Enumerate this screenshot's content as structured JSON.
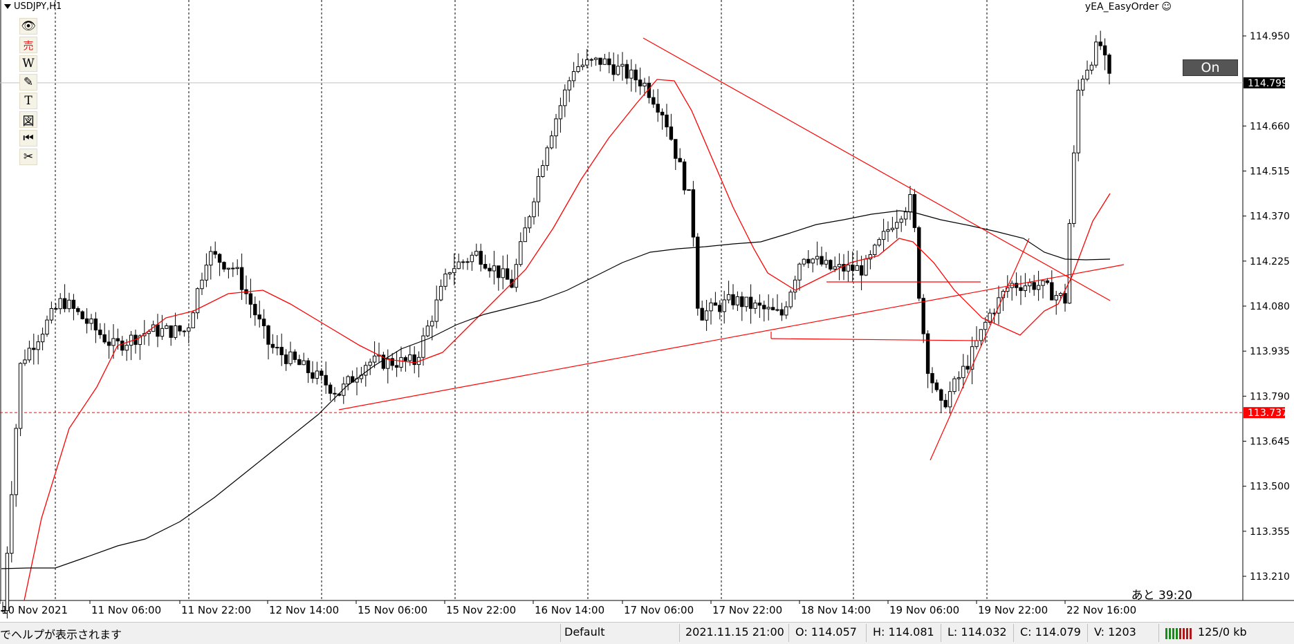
{
  "chart": {
    "symbol_label": "USDJPY,H1",
    "ea_name": "yEA_EasyOrder",
    "on_button": "On",
    "countdown": "あと 39:20",
    "current_price": "114.799",
    "line_price": "113.737",
    "price_axis": [
      "114.950",
      "114.660",
      "114.515",
      "114.370",
      "114.225",
      "114.080",
      "113.935",
      "113.790",
      "113.645",
      "113.500",
      "113.355",
      "113.210"
    ],
    "time_axis": [
      "10 Nov 2021",
      "11 Nov 06:00",
      "11 Nov 22:00",
      "12 Nov 14:00",
      "15 Nov 06:00",
      "15 Nov 22:00",
      "16 Nov 14:00",
      "17 Nov 06:00",
      "17 Nov 22:00",
      "18 Nov 14:00",
      "19 Nov 06:00",
      "19 Nov 22:00",
      "22 Nov 16:00"
    ],
    "colors": {
      "bull": "#ffffff",
      "bear": "#000000",
      "ma_fast": "#ff0000",
      "ma_slow": "#000000",
      "trendline": "#ff0000",
      "grid": "#000000",
      "price_tag": "#000000",
      "alert_tag": "#ff0000"
    }
  },
  "toolbar": {
    "icons": [
      "eye-icon",
      "sell-icon",
      "wave-icon",
      "pencil-icon",
      "text-icon",
      "drawing-icon",
      "rewind-icon",
      "scissors-icon"
    ],
    "labels": [
      "👁",
      "売",
      "W",
      "✎",
      "T",
      "図",
      "⏮",
      "✂"
    ]
  },
  "status_bar": {
    "help_text": "でヘルプが表示されます",
    "profile": "Default",
    "datetime": "2021.11.15 21:00",
    "open": "O: 114.057",
    "high": "H: 114.081",
    "low": "L: 114.032",
    "close": "C: 114.079",
    "volume": "V: 1203",
    "traffic": "125/0 kb"
  }
}
